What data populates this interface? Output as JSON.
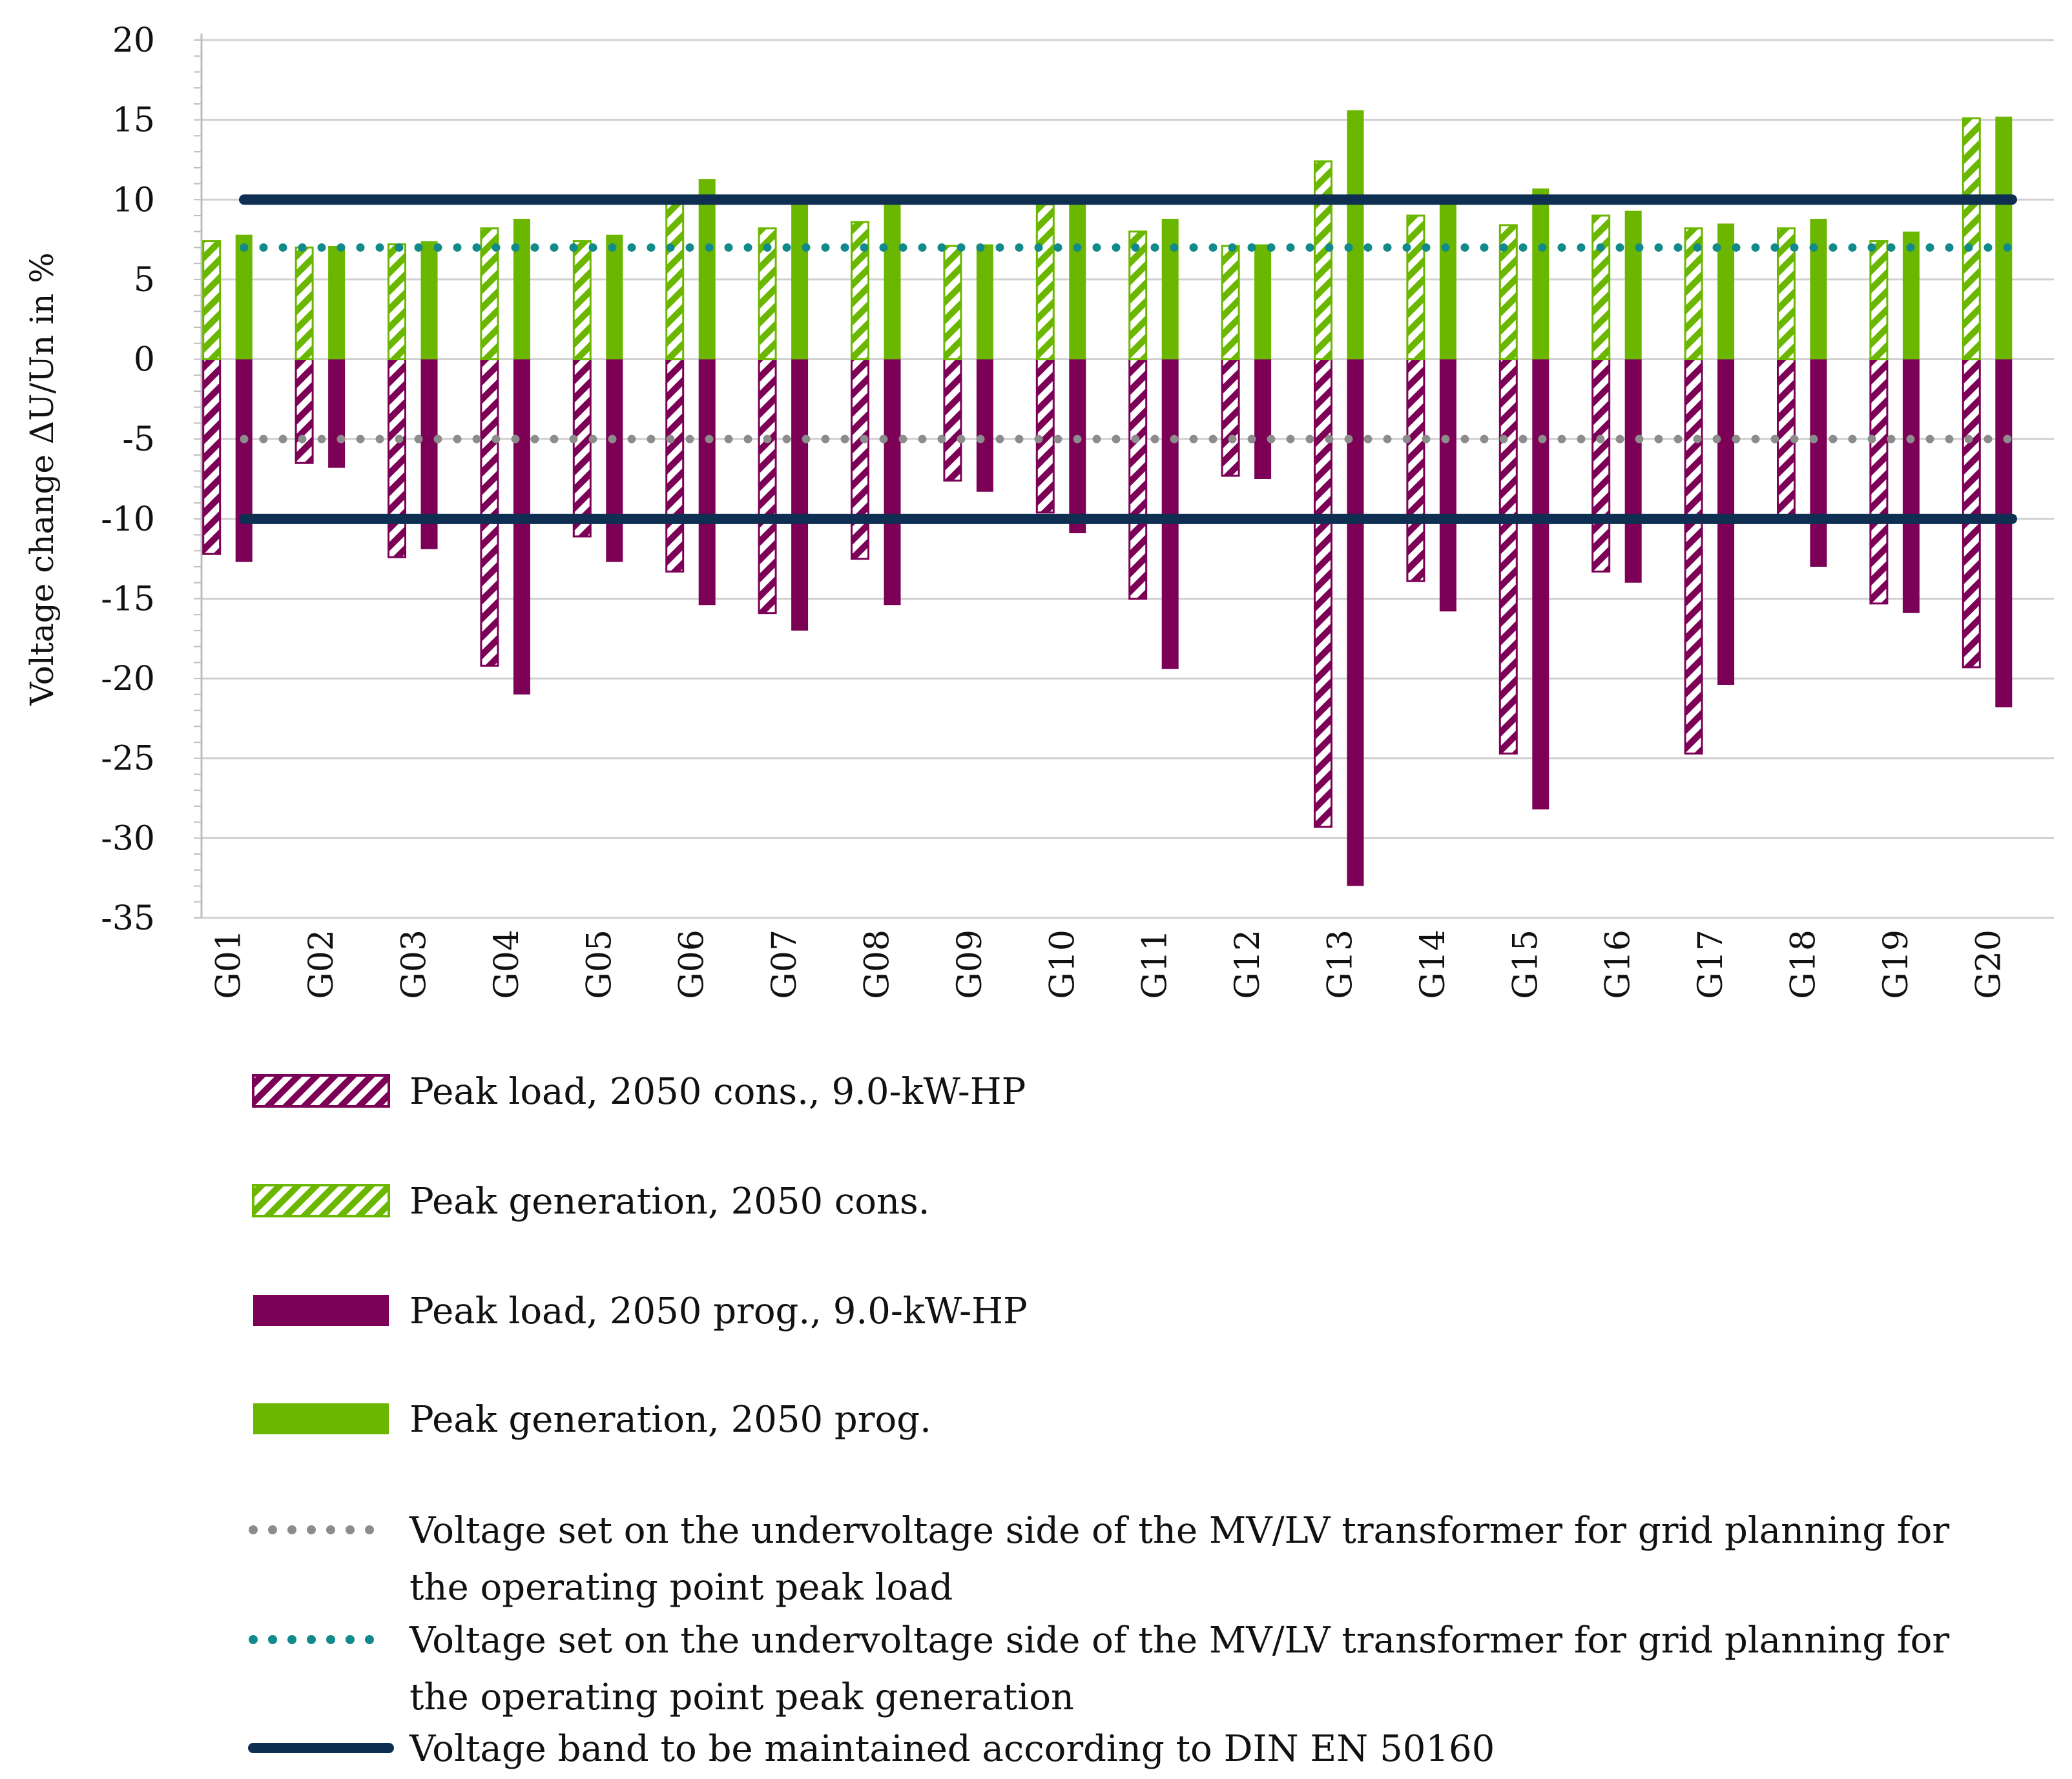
{
  "chart_data": {
    "type": "bar",
    "title": "",
    "xlabel": "",
    "ylabel": "Voltage change ΔU/Un  in %",
    "ylim": [
      -35,
      20
    ],
    "yticks": [
      20,
      15,
      10,
      5,
      0,
      -5,
      -10,
      -15,
      -20,
      -25,
      -30,
      -35
    ],
    "grid": true,
    "legend_position": "bottom",
    "categories": [
      "G01",
      "G02",
      "G03",
      "G04",
      "G05",
      "G06",
      "G07",
      "G08",
      "G09",
      "G10",
      "G11",
      "G12",
      "G13",
      "G14",
      "G15",
      "G16",
      "G17",
      "G18",
      "G19",
      "G20"
    ],
    "series": [
      {
        "name": "Peak load, 2050 cons., 9.0-kW-HP",
        "style": "hatched",
        "color": "#7b0056",
        "values": [
          -12.2,
          -6.5,
          -12.4,
          -19.2,
          -11.1,
          -13.3,
          -15.9,
          -12.5,
          -7.6,
          -9.6,
          -15.0,
          -7.3,
          -29.3,
          -13.9,
          -24.7,
          -13.3,
          -24.7,
          -10.0,
          -15.3,
          -19.3
        ]
      },
      {
        "name": "Peak generation, 2050 cons.",
        "style": "hatched",
        "color": "#6bb700",
        "values": [
          7.4,
          7.0,
          7.2,
          8.2,
          7.4,
          10.0,
          8.2,
          8.6,
          7.1,
          9.7,
          8.0,
          7.1,
          12.4,
          9.0,
          8.4,
          9.0,
          8.2,
          8.2,
          7.4,
          15.1
        ]
      },
      {
        "name": "Peak load, 2050 prog., 9.0-kW-HP",
        "style": "solid",
        "color": "#7b0056",
        "values": [
          -12.7,
          -6.8,
          -11.9,
          -21.0,
          -12.7,
          -15.4,
          -17.0,
          -15.4,
          -8.3,
          -10.9,
          -19.4,
          -7.5,
          -33.0,
          -15.8,
          -28.2,
          -14.0,
          -20.4,
          -13.0,
          -15.9,
          -21.8
        ]
      },
      {
        "name": "Peak generation, 2050 prog.",
        "style": "solid",
        "color": "#6bb700",
        "values": [
          7.8,
          7.1,
          7.4,
          8.8,
          7.8,
          11.3,
          10.1,
          10.1,
          7.2,
          10.1,
          8.8,
          7.2,
          15.6,
          10.1,
          10.7,
          9.3,
          8.5,
          8.8,
          8.0,
          15.2
        ]
      }
    ],
    "reference_lines": [
      {
        "name": "Voltage set on the undervoltage side of the MV/LV transformer for grid planning for the operating point peak load",
        "label_lines": [
          "Voltage set on the undervoltage side of the MV/LV transformer for grid planning for",
          "the operating point peak load"
        ],
        "style": "dotted",
        "color": "#8c8c8c",
        "values": [
          -5
        ]
      },
      {
        "name": "Voltage set on the undervoltage side of the MV/LV transformer for grid planning for the operating point peak generation",
        "label_lines": [
          "Voltage set on the undervoltage side of the MV/LV transformer for grid planning for",
          "the operating point peak generation"
        ],
        "style": "dotted",
        "color": "#108a8a",
        "values": [
          7
        ]
      },
      {
        "name": "Voltage band to be maintained according to DIN EN 50160",
        "label_lines": [
          "Voltage band to be maintained according to DIN EN 50160"
        ],
        "style": "solid",
        "color": "#0e2f52",
        "values": [
          10,
          -10
        ]
      }
    ]
  }
}
